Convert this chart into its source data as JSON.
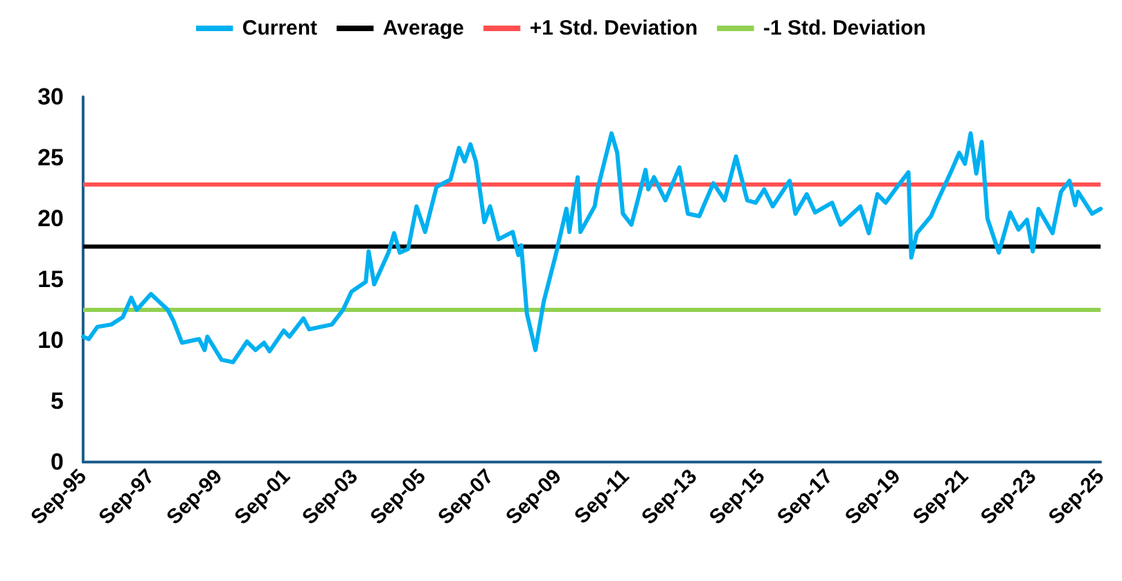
{
  "chart_data": {
    "type": "line",
    "legend": "top",
    "grid": false,
    "marker": "none",
    "line_style": "solid",
    "xlim": [
      "1995-09",
      "2025-09"
    ],
    "xticks": [
      {
        "value": "1995-09",
        "label": "Sep-95"
      },
      {
        "value": "1997-09",
        "label": "Sep-97"
      },
      {
        "value": "1999-09",
        "label": "Sep-99"
      },
      {
        "value": "2001-09",
        "label": "Sep-01"
      },
      {
        "value": "2003-09",
        "label": "Sep-03"
      },
      {
        "value": "2005-09",
        "label": "Sep-05"
      },
      {
        "value": "2007-09",
        "label": "Sep-07"
      },
      {
        "value": "2009-09",
        "label": "Sep-09"
      },
      {
        "value": "2011-09",
        "label": "Sep-11"
      },
      {
        "value": "2013-09",
        "label": "Sep-13"
      },
      {
        "value": "2015-09",
        "label": "Sep-15"
      },
      {
        "value": "2017-09",
        "label": "Sep-17"
      },
      {
        "value": "2019-09",
        "label": "Sep-19"
      },
      {
        "value": "2021-09",
        "label": "Sep-21"
      },
      {
        "value": "2023-09",
        "label": "Sep-23"
      },
      {
        "value": "2025-09",
        "label": "Sep-25"
      }
    ],
    "ylim": [
      0,
      30
    ],
    "yticks": [
      0,
      5,
      10,
      15,
      20,
      25,
      30
    ],
    "x": [
      "1995-09",
      "1995-11",
      "1996-02",
      "1996-07",
      "1996-11",
      "1997-02",
      "1997-04",
      "1997-09",
      "1998-03",
      "1998-05",
      "1998-08",
      "1999-02",
      "1999-04",
      "1999-05",
      "1999-10",
      "2000-02",
      "2000-07",
      "2000-10",
      "2001-01",
      "2001-03",
      "2001-08",
      "2001-10",
      "2002-03",
      "2002-05",
      "2003-01",
      "2003-05",
      "2003-08",
      "2004-01",
      "2004-02",
      "2004-04",
      "2004-09",
      "2004-11",
      "2005-01",
      "2005-04",
      "2005-07",
      "2005-10",
      "2006-02",
      "2006-07",
      "2006-10",
      "2006-12",
      "2007-02",
      "2007-04",
      "2007-07",
      "2007-09",
      "2007-12",
      "2008-05",
      "2008-07",
      "2008-08",
      "2008-10",
      "2009-01",
      "2009-04",
      "2009-08",
      "2009-12",
      "2010-01",
      "2010-04",
      "2010-05",
      "2010-10",
      "2010-11",
      "2011-04",
      "2011-06",
      "2011-08",
      "2011-11",
      "2012-04",
      "2012-05",
      "2012-07",
      "2012-11",
      "2013-04",
      "2013-07",
      "2013-11",
      "2014-04",
      "2014-08",
      "2014-12",
      "2015-04",
      "2015-07",
      "2015-10",
      "2016-01",
      "2016-07",
      "2016-09",
      "2017-01",
      "2017-04",
      "2017-10",
      "2018-01",
      "2018-08",
      "2018-11",
      "2019-02",
      "2019-05",
      "2019-09",
      "2020-01",
      "2020-02",
      "2020-04",
      "2020-09",
      "2020-11",
      "2021-04",
      "2021-07",
      "2021-09",
      "2021-11",
      "2022-01",
      "2022-03",
      "2022-05",
      "2022-09",
      "2023-01",
      "2023-04",
      "2023-07",
      "2023-09",
      "2023-11",
      "2024-04",
      "2024-07",
      "2024-10",
      "2024-12",
      "2025-01",
      "2025-06",
      "2025-09"
    ],
    "series": [
      {
        "name": "Current",
        "color": "#00b0f0",
        "values": [
          10.3,
          10.1,
          11.1,
          11.3,
          11.9,
          13.5,
          12.5,
          13.8,
          12.5,
          11.6,
          9.8,
          10.1,
          9.2,
          10.3,
          8.4,
          8.2,
          9.9,
          9.2,
          9.8,
          9.1,
          10.8,
          10.3,
          11.8,
          10.9,
          11.3,
          12.5,
          14.0,
          14.8,
          17.3,
          14.6,
          17.2,
          18.8,
          17.2,
          17.5,
          21.0,
          18.9,
          22.6,
          23.2,
          25.8,
          24.7,
          26.1,
          24.7,
          19.7,
          21.0,
          18.3,
          18.9,
          17.0,
          17.8,
          12.2,
          9.2,
          13.2,
          16.8,
          20.8,
          18.9,
          23.4,
          18.9,
          21.0,
          22.4,
          27.0,
          25.4,
          20.4,
          19.5,
          24.0,
          22.4,
          23.4,
          21.5,
          24.2,
          20.4,
          20.2,
          22.9,
          21.5,
          25.1,
          21.5,
          21.3,
          22.4,
          21.0,
          23.1,
          20.4,
          22.0,
          20.5,
          21.3,
          19.5,
          21.0,
          18.8,
          22.0,
          21.3,
          22.6,
          23.8,
          16.8,
          18.8,
          20.2,
          21.3,
          23.8,
          25.4,
          24.5,
          27.0,
          23.7,
          26.3,
          20.0,
          17.2,
          20.5,
          19.1,
          19.9,
          17.3,
          20.8,
          18.8,
          22.2,
          23.1,
          21.1,
          22.2,
          20.4,
          20.8
        ]
      }
    ],
    "ref_lines": [
      {
        "axis": "y",
        "value": 17.7,
        "label": "Average",
        "color": "#000000"
      },
      {
        "axis": "y",
        "value": 22.8,
        "label": "+1 Std. Deviation",
        "color": "#ff5050"
      },
      {
        "axis": "y",
        "value": 12.5,
        "label": "-1 Std. Deviation",
        "color": "#92d050"
      }
    ]
  }
}
